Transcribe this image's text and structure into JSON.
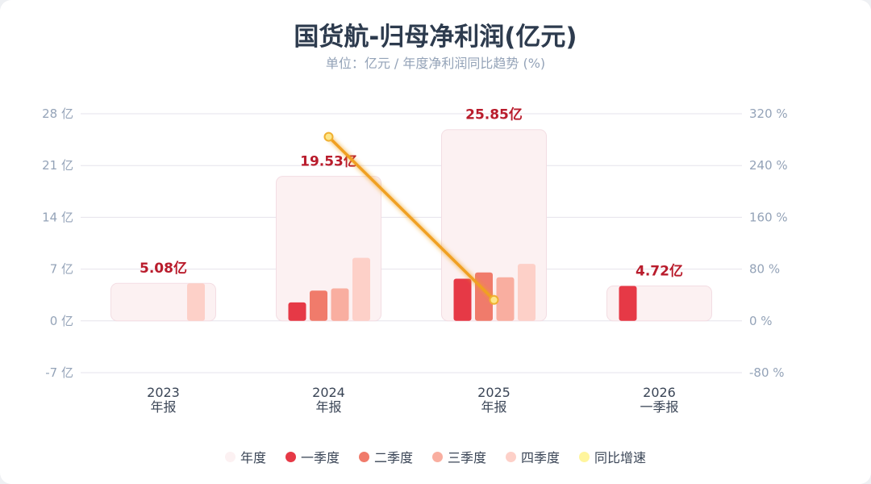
{
  "title": "国货航-归母净利润(亿元)",
  "subtitle": "单位：亿元 / 年度净利润同比趋势 (%)",
  "colors": {
    "annual": "#fcf1f2",
    "q1": "#e63946",
    "q2": "#f07b6b",
    "q3": "#f9aea0",
    "q4": "#fdd0c8",
    "yoy": "#fff59d",
    "line": "#f0a020",
    "label": "#b91c2c"
  },
  "chart_data": {
    "type": "bar",
    "categories": [
      [
        "2023",
        "年报"
      ],
      [
        "2024",
        "年报"
      ],
      [
        "2025",
        "年报"
      ],
      [
        "2026",
        "一季报"
      ]
    ],
    "series": [
      {
        "name": "年度",
        "values": [
          5.08,
          19.53,
          25.85,
          4.72
        ]
      },
      {
        "name": "一季度",
        "values": [
          null,
          2.5,
          5.7,
          4.72
        ]
      },
      {
        "name": "二季度",
        "values": [
          null,
          4.1,
          6.55,
          null
        ]
      },
      {
        "name": "三季度",
        "values": [
          null,
          4.4,
          5.9,
          null
        ]
      },
      {
        "name": "四季度",
        "values": [
          5.08,
          8.53,
          7.7,
          null
        ]
      },
      {
        "name": "同比增速",
        "type": "line",
        "axis": "right",
        "values": [
          null,
          284.4,
          32.4,
          null
        ]
      }
    ],
    "annual_labels": [
      "5.08亿",
      "19.53亿",
      "25.85亿",
      "4.72亿"
    ],
    "y_left": {
      "range": [
        -7,
        28
      ],
      "ticks": [
        "-7 亿",
        "0 亿",
        "7 亿",
        "14 亿",
        "21 亿",
        "28 亿"
      ],
      "tick_values": [
        -7,
        0,
        7,
        14,
        21,
        28
      ]
    },
    "y_right": {
      "range": [
        -80,
        320
      ],
      "ticks": [
        "-80 %",
        "0 %",
        "80 %",
        "160 %",
        "240 %",
        "320 %"
      ],
      "tick_values": [
        -80,
        0,
        80,
        160,
        240,
        320
      ]
    },
    "grid": true,
    "legend_position": "bottom"
  }
}
